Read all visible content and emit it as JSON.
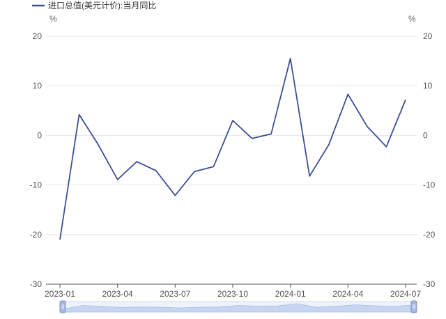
{
  "chart_data": {
    "type": "line",
    "legend": [
      "进口总值(美元计价):当月同比"
    ],
    "legend_position": "top-left",
    "y_unit_left": "%",
    "y_unit_right": "%",
    "ylim": [
      -30,
      20
    ],
    "yticks": [
      20,
      10,
      0,
      -10,
      -20,
      -30
    ],
    "x_tick_labels": [
      "2023-01",
      "2023-04",
      "2023-07",
      "2023-10",
      "2024-01",
      "2024-04",
      "2024-07"
    ],
    "grid": true,
    "dual_y_axis": true,
    "series": [
      {
        "name": "进口总值(美元计价):当月同比",
        "color": "#3d4f93",
        "x": [
          "2023-01",
          "2023-02",
          "2023-03",
          "2023-04",
          "2023-05",
          "2023-06",
          "2023-07",
          "2023-08",
          "2023-09",
          "2023-10",
          "2023-11",
          "2023-12",
          "2024-01",
          "2024-02",
          "2024-03",
          "2024-04",
          "2024-05",
          "2024-06",
          "2024-07"
        ],
        "values": [
          -21.0,
          4.2,
          -1.9,
          -8.9,
          -5.3,
          -7.1,
          -12.1,
          -7.3,
          -6.3,
          3.0,
          -0.6,
          0.3,
          15.5,
          -8.2,
          -1.9,
          8.3,
          1.8,
          -2.3,
          7.2
        ]
      }
    ]
  },
  "data_zoom": {
    "handle_color": "#a6b8e0",
    "fill_color": "#dde6f7"
  }
}
